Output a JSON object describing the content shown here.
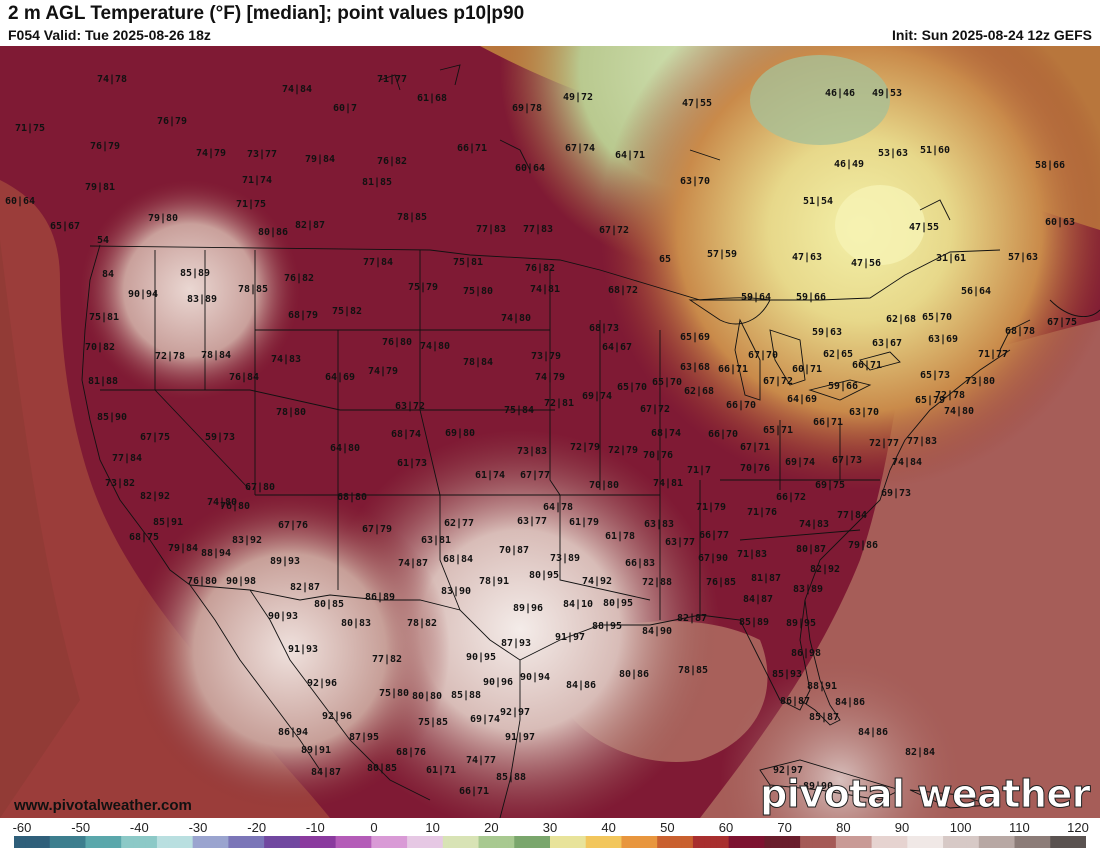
{
  "header": {
    "title": "2 m AGL Temperature (°F) [median]; point values p10|p90",
    "valid": "F054 Valid: Tue 2025-08-26 18z",
    "init": "Init: Sun 2025-08-24 12z GEFS"
  },
  "footer": {
    "website": "www.pivotalweather.com",
    "brand": "pivotal weather"
  },
  "colorbar": {
    "labels": [
      "-60",
      "-50",
      "-40",
      "-30",
      "-20",
      "-10",
      "0",
      "10",
      "20",
      "30",
      "40",
      "50",
      "60",
      "70",
      "80",
      "90",
      "100",
      "110",
      "120"
    ],
    "colors": [
      "#2f5f7a",
      "#3d7e8e",
      "#5aa7ab",
      "#8cc9c7",
      "#b9dfe0",
      "#9aa4cf",
      "#7b76b8",
      "#7148a0",
      "#8a3a9e",
      "#b45cb8",
      "#d99ad6",
      "#e6c8e4",
      "#d8e3b5",
      "#a8c990",
      "#7aa66c",
      "#e8e39a",
      "#f2c65c",
      "#e8963e",
      "#c9602f",
      "#a82f2f",
      "#7d1230",
      "#6a1d2c",
      "#a55a57",
      "#c99a96",
      "#e6d3d0",
      "#f0e8e6",
      "#d7c9c6",
      "#b8a8a4",
      "#8c7c78",
      "#5a5250"
    ]
  },
  "map": {
    "point_values": [
      [
        "74|78",
        112,
        82
      ],
      [
        "71|77",
        392,
        82
      ],
      [
        "74|84",
        297,
        92
      ],
      [
        "61|68",
        432,
        101
      ],
      [
        "49|72",
        578,
        100
      ],
      [
        "47|55",
        697,
        106
      ],
      [
        "46|46",
        840,
        96
      ],
      [
        "49|53",
        887,
        96
      ],
      [
        "69|78",
        527,
        111
      ],
      [
        "60|7",
        345,
        111
      ],
      [
        "71|75",
        30,
        131
      ],
      [
        "76|79",
        172,
        124
      ],
      [
        "76|79",
        105,
        149
      ],
      [
        "74|79",
        211,
        156
      ],
      [
        "73|77",
        262,
        157
      ],
      [
        "79|84",
        320,
        162
      ],
      [
        "76|82",
        392,
        164
      ],
      [
        "66|71",
        472,
        151
      ],
      [
        "67|74",
        580,
        151
      ],
      [
        "64|71",
        630,
        158
      ],
      [
        "60|64",
        530,
        171
      ],
      [
        "53|63",
        893,
        156
      ],
      [
        "51|60",
        935,
        153
      ],
      [
        "58|66",
        1050,
        168
      ],
      [
        "79|81",
        100,
        190
      ],
      [
        "71|74",
        257,
        183
      ],
      [
        "81|85",
        377,
        185
      ],
      [
        "63|70",
        695,
        184
      ],
      [
        "46|49",
        849,
        167
      ],
      [
        "60|64",
        20,
        204
      ],
      [
        "71|75",
        251,
        207
      ],
      [
        "78|85",
        412,
        220
      ],
      [
        "79|80",
        163,
        221
      ],
      [
        "65|67",
        65,
        229
      ],
      [
        "80|86",
        273,
        235
      ],
      [
        "82|87",
        310,
        228
      ],
      [
        "77|83",
        491,
        232
      ],
      [
        "77|83",
        538,
        232
      ],
      [
        "67|72",
        614,
        233
      ],
      [
        "51|54",
        818,
        204
      ],
      [
        "47|55",
        924,
        230
      ],
      [
        "60|63",
        1060,
        225
      ],
      [
        "54",
        103,
        243
      ],
      [
        "77|84",
        378,
        265
      ],
      [
        "75|81",
        468,
        265
      ],
      [
        "76|82",
        540,
        271
      ],
      [
        "65",
        665,
        262
      ],
      [
        "57|59",
        722,
        257
      ],
      [
        "47|63",
        807,
        260
      ],
      [
        "47|56",
        866,
        266
      ],
      [
        "31|61",
        951,
        261
      ],
      [
        "57|63",
        1023,
        260
      ],
      [
        "84",
        108,
        277
      ],
      [
        "85|89",
        195,
        276
      ],
      [
        "76|82",
        299,
        281
      ],
      [
        "75|79",
        423,
        290
      ],
      [
        "75|80",
        478,
        294
      ],
      [
        "74|81",
        545,
        292
      ],
      [
        "68|72",
        623,
        293
      ],
      [
        "59|64",
        756,
        300
      ],
      [
        "59|66",
        811,
        300
      ],
      [
        "56|64",
        976,
        294
      ],
      [
        "90|94",
        143,
        297
      ],
      [
        "83|89",
        202,
        302
      ],
      [
        "78|85",
        253,
        292
      ],
      [
        "68|79",
        303,
        318
      ],
      [
        "75|82",
        347,
        314
      ],
      [
        "74|80",
        516,
        321
      ],
      [
        "62|68",
        901,
        322
      ],
      [
        "65|70",
        937,
        320
      ],
      [
        "75|81",
        104,
        320
      ],
      [
        "68|78",
        1020,
        334
      ],
      [
        "67|75",
        1062,
        325
      ],
      [
        "68|73",
        604,
        331
      ],
      [
        "59|63",
        827,
        335
      ],
      [
        "70|82",
        100,
        350
      ],
      [
        "76|80",
        397,
        345
      ],
      [
        "74|80",
        435,
        349
      ],
      [
        "64|67",
        617,
        350
      ],
      [
        "65|69",
        695,
        340
      ],
      [
        "63|67",
        887,
        346
      ],
      [
        "63|69",
        943,
        342
      ],
      [
        "72|78",
        170,
        359
      ],
      [
        "78|84",
        216,
        358
      ],
      [
        "74|83",
        286,
        362
      ],
      [
        "73|79",
        546,
        359
      ],
      [
        "62|65",
        838,
        357
      ],
      [
        "71|77",
        993,
        357
      ],
      [
        "78|84",
        478,
        365
      ],
      [
        "63|68",
        695,
        370
      ],
      [
        "66|71",
        733,
        372
      ],
      [
        "67|70",
        763,
        358
      ],
      [
        "60|71",
        807,
        372
      ],
      [
        "66|71",
        867,
        368
      ],
      [
        "64|69",
        340,
        380
      ],
      [
        "74|79",
        383,
        374
      ],
      [
        "76|84",
        244,
        380
      ],
      [
        "74|79",
        550,
        380
      ],
      [
        "81|88",
        103,
        384
      ],
      [
        "65|70",
        632,
        390
      ],
      [
        "65|70",
        667,
        385
      ],
      [
        "62|68",
        699,
        394
      ],
      [
        "67|72",
        778,
        384
      ],
      [
        "59|66",
        843,
        389
      ],
      [
        "65|73",
        935,
        378
      ],
      [
        "73|80",
        980,
        384
      ],
      [
        "69|74",
        597,
        399
      ],
      [
        "64|69",
        802,
        402
      ],
      [
        "72|78",
        950,
        398
      ],
      [
        "78|80",
        291,
        415
      ],
      [
        "63|72",
        410,
        409
      ],
      [
        "75|84",
        519,
        413
      ],
      [
        "72|81",
        559,
        406
      ],
      [
        "67|72",
        655,
        412
      ],
      [
        "66|70",
        741,
        408
      ],
      [
        "63|70",
        864,
        415
      ],
      [
        "65|79",
        930,
        403
      ],
      [
        "74|80",
        959,
        414
      ],
      [
        "85|90",
        112,
        420
      ],
      [
        "68|74",
        406,
        437
      ],
      [
        "69|80",
        460,
        436
      ],
      [
        "66|71",
        828,
        425
      ],
      [
        "67|75",
        155,
        440
      ],
      [
        "59|73",
        220,
        440
      ],
      [
        "68|74",
        666,
        436
      ],
      [
        "66|70",
        723,
        437
      ],
      [
        "65|71",
        778,
        433
      ],
      [
        "72|77",
        884,
        446
      ],
      [
        "77|83",
        922,
        444
      ],
      [
        "64|80",
        345,
        451
      ],
      [
        "73|83",
        532,
        454
      ],
      [
        "72|79",
        585,
        450
      ],
      [
        "72|79",
        623,
        453
      ],
      [
        "67|71",
        755,
        450
      ],
      [
        "61|73",
        412,
        466
      ],
      [
        "70|76",
        658,
        458
      ],
      [
        "67|73",
        847,
        463
      ],
      [
        "77|84",
        127,
        461
      ],
      [
        "69|74",
        800,
        465
      ],
      [
        "74|84",
        907,
        465
      ],
      [
        "70|76",
        755,
        471
      ],
      [
        "61|74",
        490,
        478
      ],
      [
        "67|77",
        535,
        478
      ],
      [
        "71|7",
        699,
        473
      ],
      [
        "73|82",
        120,
        486
      ],
      [
        "67|80",
        260,
        490
      ],
      [
        "70|80",
        604,
        488
      ],
      [
        "74|81",
        668,
        486
      ],
      [
        "69|75",
        830,
        488
      ],
      [
        "69|73",
        896,
        496
      ],
      [
        "82|92",
        155,
        499
      ],
      [
        "68|80",
        352,
        500
      ],
      [
        "76|80",
        235,
        509
      ],
      [
        "74|80",
        222,
        505
      ],
      [
        "64|78",
        558,
        510
      ],
      [
        "71|79",
        711,
        510
      ],
      [
        "71|76",
        762,
        515
      ],
      [
        "66|72",
        791,
        500
      ],
      [
        "77|84",
        852,
        518
      ],
      [
        "85|91",
        168,
        525
      ],
      [
        "63|77",
        532,
        524
      ],
      [
        "61|79",
        584,
        525
      ],
      [
        "62|77",
        459,
        526
      ],
      [
        "67|76",
        293,
        528
      ],
      [
        "68|75",
        144,
        540
      ],
      [
        "83|92",
        247,
        543
      ],
      [
        "61|78",
        620,
        539
      ],
      [
        "63|83",
        659,
        527
      ],
      [
        "74|83",
        814,
        527
      ],
      [
        "67|79",
        377,
        532
      ],
      [
        "63|81",
        436,
        543
      ],
      [
        "66|77",
        714,
        538
      ],
      [
        "63|77",
        680,
        545
      ],
      [
        "79|86",
        863,
        548
      ],
      [
        "79|84",
        183,
        551
      ],
      [
        "88|94",
        216,
        556
      ],
      [
        "70|87",
        514,
        553
      ],
      [
        "68|84",
        458,
        562
      ],
      [
        "74|87",
        413,
        566
      ],
      [
        "73|89",
        565,
        561
      ],
      [
        "66|83",
        640,
        566
      ],
      [
        "67|90",
        713,
        561
      ],
      [
        "71|83",
        752,
        557
      ],
      [
        "80|87",
        811,
        552
      ],
      [
        "89|93",
        285,
        564
      ],
      [
        "80|95",
        544,
        578
      ],
      [
        "82|92",
        825,
        572
      ],
      [
        "76|80",
        202,
        584
      ],
      [
        "90|98",
        241,
        584
      ],
      [
        "82|87",
        305,
        590
      ],
      [
        "78|91",
        494,
        584
      ],
      [
        "74|92",
        597,
        584
      ],
      [
        "72|88",
        657,
        585
      ],
      [
        "76|85",
        721,
        585
      ],
      [
        "81|87",
        766,
        581
      ],
      [
        "80|85",
        329,
        607
      ],
      [
        "86|89",
        380,
        600
      ],
      [
        "83|90",
        456,
        594
      ],
      [
        "80|95",
        618,
        606
      ],
      [
        "84|10",
        578,
        607
      ],
      [
        "89|96",
        528,
        611
      ],
      [
        "83|89",
        808,
        592
      ],
      [
        "84|87",
        758,
        602
      ],
      [
        "90|93",
        283,
        619
      ],
      [
        "80|83",
        356,
        626
      ],
      [
        "78|82",
        422,
        626
      ],
      [
        "88|95",
        607,
        629
      ],
      [
        "82|87",
        692,
        621
      ],
      [
        "85|89",
        754,
        625
      ],
      [
        "89|95",
        801,
        626
      ],
      [
        "84|90",
        657,
        634
      ],
      [
        "91|97",
        570,
        640
      ],
      [
        "87|93",
        516,
        646
      ],
      [
        "91|93",
        303,
        652
      ],
      [
        "86|98",
        806,
        656
      ],
      [
        "90|95",
        481,
        660
      ],
      [
        "77|82",
        387,
        662
      ],
      [
        "85|93",
        787,
        677
      ],
      [
        "80|86",
        634,
        677
      ],
      [
        "78|85",
        693,
        673
      ],
      [
        "92|96",
        322,
        686
      ],
      [
        "90|96",
        498,
        685
      ],
      [
        "90|94",
        535,
        680
      ],
      [
        "84|86",
        581,
        688
      ],
      [
        "88|91",
        822,
        689
      ],
      [
        "80|80",
        427,
        699
      ],
      [
        "85|88",
        466,
        698
      ],
      [
        "75|80",
        394,
        696
      ],
      [
        "86|87",
        795,
        704
      ],
      [
        "84|86",
        850,
        705
      ],
      [
        "92|96",
        337,
        719
      ],
      [
        "92|97",
        515,
        715
      ],
      [
        "69|74",
        485,
        722
      ],
      [
        "75|85",
        433,
        725
      ],
      [
        "85|87",
        824,
        720
      ],
      [
        "86|94",
        293,
        735
      ],
      [
        "87|95",
        364,
        740
      ],
      [
        "91|97",
        520,
        740
      ],
      [
        "84|86",
        873,
        735
      ],
      [
        "89|91",
        316,
        753
      ],
      [
        "68|76",
        411,
        755
      ],
      [
        "82|84",
        920,
        755
      ],
      [
        "74|77",
        481,
        763
      ],
      [
        "84|87",
        326,
        775
      ],
      [
        "80|85",
        382,
        771
      ],
      [
        "61|71",
        441,
        773
      ],
      [
        "85|88",
        511,
        780
      ],
      [
        "92|97",
        788,
        773
      ],
      [
        "66|71",
        474,
        794
      ],
      [
        "89|90",
        818,
        789
      ]
    ]
  }
}
